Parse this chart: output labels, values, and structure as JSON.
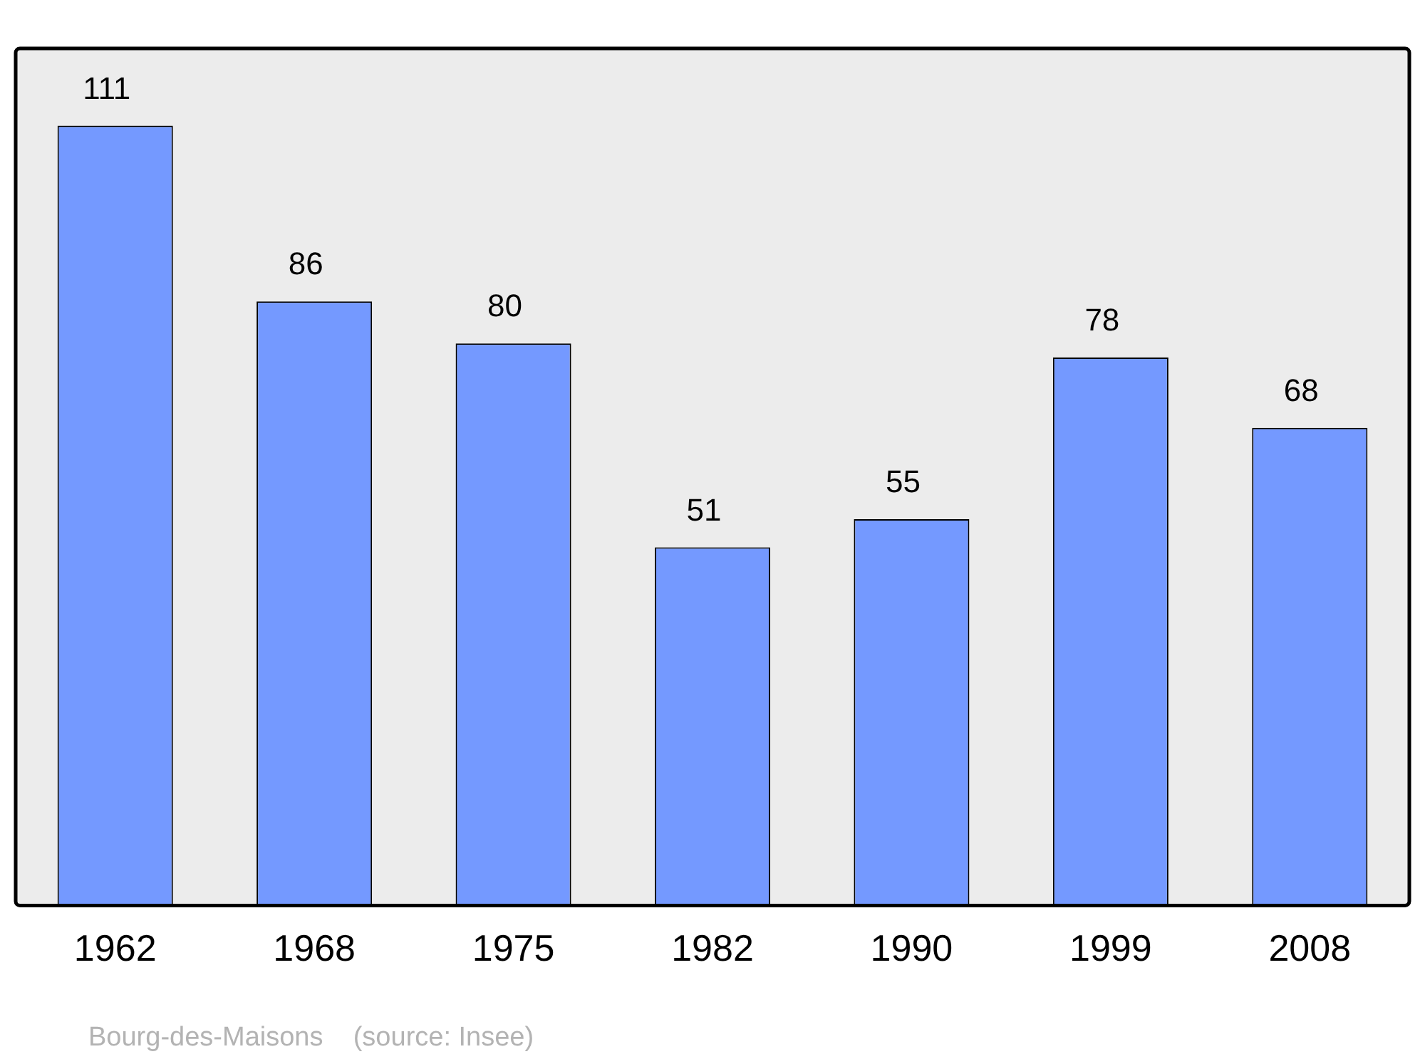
{
  "chart_data": {
    "type": "bar",
    "categories": [
      "1962",
      "1968",
      "1975",
      "1982",
      "1990",
      "1999",
      "2008"
    ],
    "values": [
      111,
      86,
      80,
      51,
      55,
      78,
      68
    ],
    "color": "#7499ff",
    "ylim": [
      0,
      122
    ],
    "data_labels": true,
    "grid": false,
    "legend": false,
    "annotations": [
      "Bourg-des-Maisons    (source: Insee)"
    ]
  }
}
